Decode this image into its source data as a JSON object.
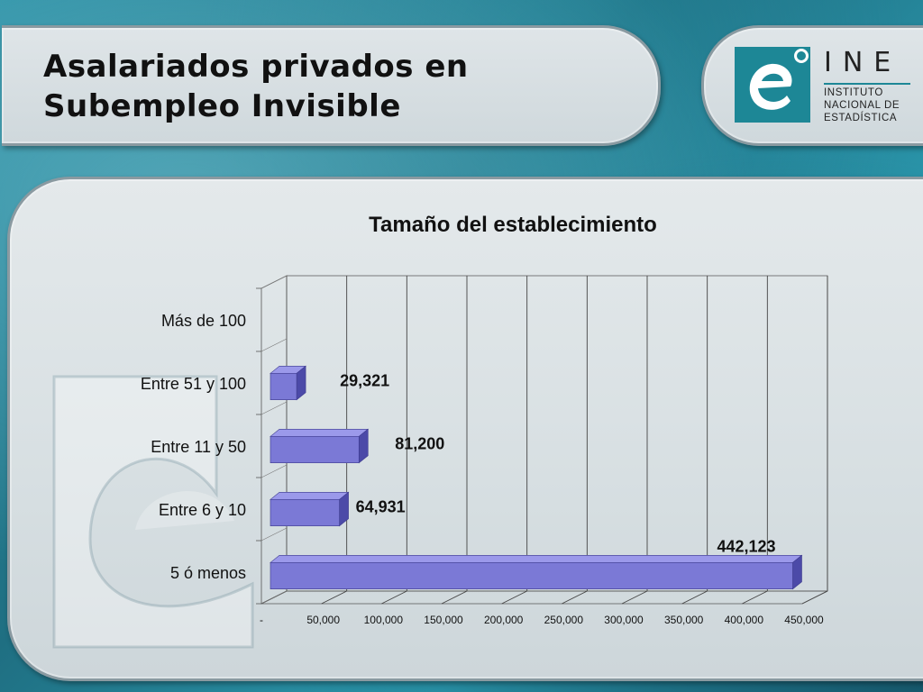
{
  "slide": {
    "title_line1": "Asalariados privados en",
    "title_line2": "Subempleo Invisible"
  },
  "logo": {
    "name": "INE",
    "line1": "INSTITUTO",
    "line2": "NACIONAL DE",
    "line3": "ESTADÍSTICA",
    "icon": "ine-e-logo-icon"
  },
  "colors": {
    "bar": "#7b79d6",
    "bar_top": "#9b99ea",
    "bar_side": "#4c4aa8",
    "accent": "#1d8796"
  },
  "chart_data": {
    "type": "bar",
    "orientation": "horizontal",
    "style": "3d",
    "title": "Tamaño del establecimiento",
    "categories": [
      "Más de 100",
      "Entre 51 y 100",
      "Entre 11 y 50",
      "Entre 6 y 10",
      "5 ó menos"
    ],
    "values": [
      null,
      29321,
      81200,
      64931,
      442123
    ],
    "data_labels": [
      "",
      "29,321",
      "81,200",
      "64,931",
      "442,123"
    ],
    "xlim": [
      0,
      450000
    ],
    "x_ticks": [
      0,
      50000,
      100000,
      150000,
      200000,
      250000,
      300000,
      350000,
      400000,
      450000
    ],
    "x_tick_labels": [
      "-",
      "50,000",
      "100,000",
      "150,000",
      "200,000",
      "250,000",
      "300,000",
      "350,000",
      "400,000",
      "450,000"
    ],
    "grid": true,
    "legend": "none"
  }
}
